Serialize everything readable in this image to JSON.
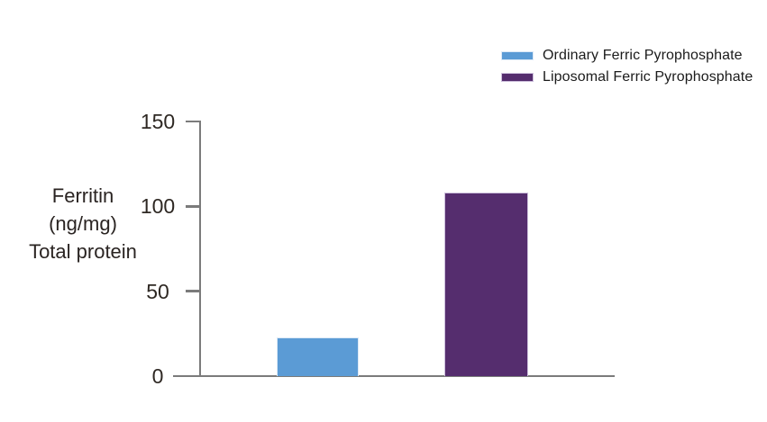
{
  "chart_data": {
    "type": "bar",
    "title": "",
    "y_axis_title_lines": [
      "Ferritin",
      "(ng/mg)",
      "Total protein"
    ],
    "categories": [
      "Ordinary Ferric Pyrophosphate",
      "Liposomal Ferric Pyrophosphate"
    ],
    "series": [
      {
        "name": "Ordinary Ferric Pyrophosphate",
        "value": 23,
        "color": "#5B9BD5",
        "edge_color": "#DCE9F6"
      },
      {
        "name": "Liposomal Ferric Pyrophosphate",
        "value": 108,
        "color": "#552D6E",
        "edge_color": "#CDBFDC"
      }
    ],
    "yticks": [
      0,
      50,
      100,
      150
    ],
    "ylim": [
      0,
      150
    ],
    "grid": false,
    "x_axis_labels_shown": false,
    "legend": {
      "position": "top-right"
    },
    "colors": {
      "axis": "#7B7B7B",
      "tick_label_text": "#2E2823",
      "y_axis_title_text": "#2A2422",
      "legend_text": "#1B1B1B",
      "background": "#FFFFFF"
    }
  }
}
